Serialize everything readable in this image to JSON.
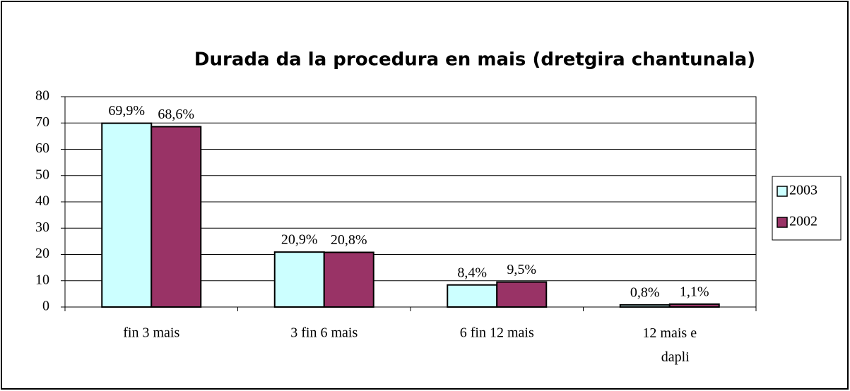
{
  "chart_data": {
    "type": "bar",
    "title": "Durada da la procedura en mais (dretgira chantunala)",
    "categories": [
      "fin 3 mais",
      "3 fin 6 mais",
      "6 fin 12 mais",
      "12 mais e dapli"
    ],
    "series": [
      {
        "name": "2003",
        "color": "#ccffff",
        "values": [
          69.9,
          20.9,
          8.4,
          0.8
        ],
        "value_labels": [
          "69,9%",
          "20,9%",
          "8,4%",
          "0,8%"
        ]
      },
      {
        "name": "2002",
        "color": "#993366",
        "values": [
          68.6,
          20.8,
          9.5,
          1.1
        ],
        "value_labels": [
          "68,6%",
          "20,8%",
          "9,5%",
          "1,1%"
        ]
      }
    ],
    "ylim": [
      0,
      80
    ],
    "yticks": [
      0,
      10,
      20,
      30,
      40,
      50,
      60,
      70,
      80
    ],
    "grid": true,
    "legend": "right"
  }
}
